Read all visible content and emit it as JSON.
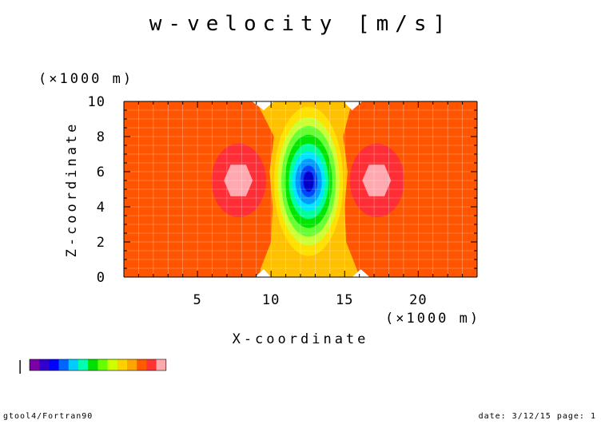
{
  "chart_data": {
    "type": "heatmap",
    "title": "w-velocity [m/s]",
    "xlabel": "X-coordinate",
    "ylabel": "Z-coordinate",
    "x_unit": "(×1000 m)",
    "y_unit": "(×1000 m)",
    "xlim": [
      0,
      24
    ],
    "ylim": [
      0,
      10
    ],
    "x_ticks": [
      5,
      10,
      15,
      20
    ],
    "y_ticks": [
      0,
      2,
      4,
      6,
      8,
      10
    ],
    "grid": true,
    "colorbar_colors": [
      "#7b00a6",
      "#3200cc",
      "#0000ff",
      "#0066ff",
      "#00ccff",
      "#00ffb0",
      "#00e000",
      "#66ff00",
      "#ccff00",
      "#ffd000",
      "#ffa500",
      "#ff5a00",
      "#ff3333",
      "#ffaaaa"
    ],
    "levels": {
      "background": "#ff5400",
      "outer_halo": "#ff2e36",
      "inner_halo": "#ffa8b0",
      "center_band": "#ffc000",
      "rings": [
        "#ffe100",
        "#ccff33",
        "#66ff33",
        "#00e600",
        "#00ff99",
        "#00e5ff",
        "#0099ff",
        "#0044ff",
        "#0000c8"
      ]
    }
  },
  "footer": {
    "left": "gtool4/Fortran90",
    "right": "date: 3/12/15 page: 1"
  },
  "colorbar_tick": "|"
}
